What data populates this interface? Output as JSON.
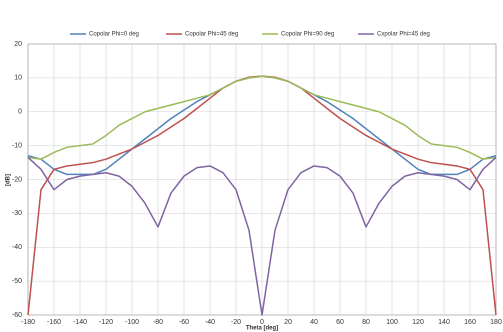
{
  "chart_data": {
    "type": "line",
    "x": [
      -180,
      -170,
      -160,
      -150,
      -140,
      -130,
      -120,
      -110,
      -100,
      -90,
      -80,
      -70,
      -60,
      -50,
      -40,
      -30,
      -20,
      -10,
      0,
      10,
      20,
      30,
      40,
      50,
      60,
      70,
      80,
      90,
      100,
      110,
      120,
      130,
      140,
      150,
      160,
      170,
      180
    ],
    "series": [
      {
        "name": "Copolar Phi=0 deg",
        "color": "#4f81bd",
        "values": [
          -13,
          -14,
          -17,
          -18.5,
          -18.5,
          -18.5,
          -17,
          -14,
          -11,
          -8,
          -5,
          -2,
          0.5,
          3,
          5,
          7,
          9,
          10,
          10.5,
          10,
          9,
          7,
          5,
          3,
          0.5,
          -2,
          -5,
          -8,
          -11,
          -14,
          -17,
          -18.5,
          -18.5,
          -18.5,
          -17,
          -14,
          -13
        ]
      },
      {
        "name": "Copolar Phi=45 deg",
        "color": "#c0504d",
        "values": [
          -60,
          -23,
          -17,
          -16,
          -15.5,
          -15,
          -14,
          -12.5,
          -11,
          -9,
          -7,
          -4.5,
          -2,
          1,
          4,
          7,
          9,
          10.2,
          10.5,
          10.2,
          9,
          7,
          4,
          1,
          -2,
          -4.5,
          -7,
          -9,
          -11,
          -12.5,
          -14,
          -15,
          -15.5,
          -16,
          -17,
          -23,
          -60
        ]
      },
      {
        "name": "Copolar Phi=90 deg",
        "color": "#9bbb59",
        "values": [
          -13.5,
          -14,
          -12,
          -10.5,
          -10,
          -9.5,
          -7,
          -4,
          -2,
          0,
          1,
          2,
          3,
          4,
          5,
          7,
          9,
          10,
          10.5,
          10,
          9,
          7,
          5,
          4,
          3,
          2,
          1,
          0,
          -2,
          -4,
          -7,
          -9.5,
          -10,
          -10.5,
          -12,
          -14,
          -13.5
        ]
      },
      {
        "name": "Cxpolar Phi=45 deg",
        "color": "#8064a2",
        "values": [
          -13.5,
          -17,
          -23,
          -20,
          -19,
          -18.5,
          -18,
          -19,
          -22,
          -27,
          -34,
          -24,
          -19,
          -16.5,
          -16,
          -18,
          -23,
          -35,
          -60,
          -35,
          -23,
          -18,
          -16,
          -16.5,
          -19,
          -24,
          -34,
          -27,
          -22,
          -19,
          -18,
          -18.5,
          -19,
          -20,
          -23,
          -17,
          -13.5
        ]
      }
    ],
    "x_label": "Theta [deg]",
    "y_label": "[dB]",
    "xlim": [
      -180,
      180
    ],
    "xticks": [
      -180,
      -160,
      -140,
      -120,
      -100,
      -80,
      -60,
      -40,
      -20,
      0,
      20,
      40,
      60,
      80,
      100,
      120,
      140,
      160,
      180
    ],
    "ylim": [
      -60,
      20
    ],
    "yticks": [
      -60,
      -50,
      -40,
      -30,
      -20,
      -10,
      0,
      10,
      20
    ],
    "grid": true,
    "legend": "top"
  }
}
